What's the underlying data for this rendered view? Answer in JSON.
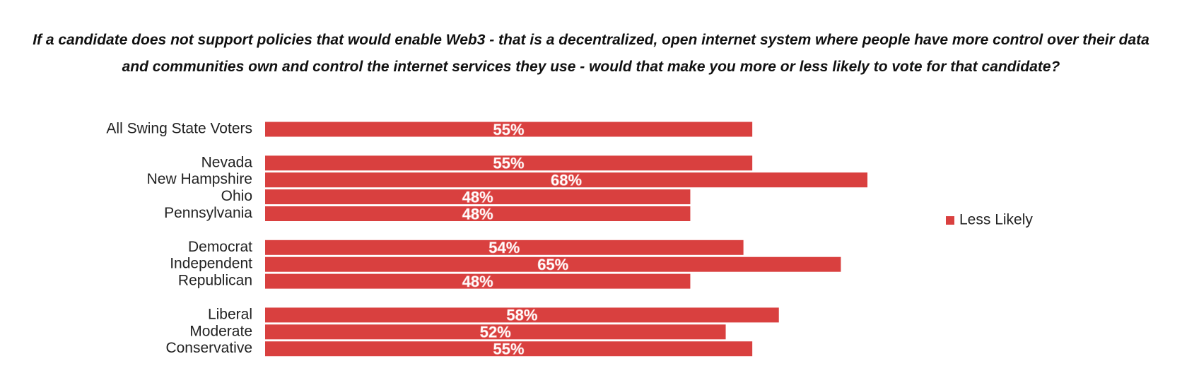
{
  "chart_data": {
    "type": "bar",
    "orientation": "horizontal",
    "title": "If a candidate does not support policies that would enable Web3 - that is a decentralized, open internet system where people have more control over their data and communities own and control the internet services they use - would that make you more or less likely to vote for that candidate?",
    "categories": [
      "All Swing State Voters",
      null,
      "Nevada",
      "New Hampshire",
      "Ohio",
      "Pennsylvania",
      null,
      "Democrat",
      "Independent",
      "Republican",
      null,
      "Liberal",
      "Moderate",
      "Conservative"
    ],
    "series": [
      {
        "name": "Less Likely",
        "color": "#d9403f",
        "values": [
          55,
          null,
          55,
          68,
          48,
          48,
          null,
          54,
          65,
          48,
          null,
          58,
          52,
          55
        ],
        "value_labels": [
          "55%",
          null,
          "55%",
          "68%",
          "48%",
          "48%",
          null,
          "54%",
          "65%",
          "48%",
          null,
          "58%",
          "52%",
          "55%"
        ]
      }
    ],
    "legend": "right"
  }
}
